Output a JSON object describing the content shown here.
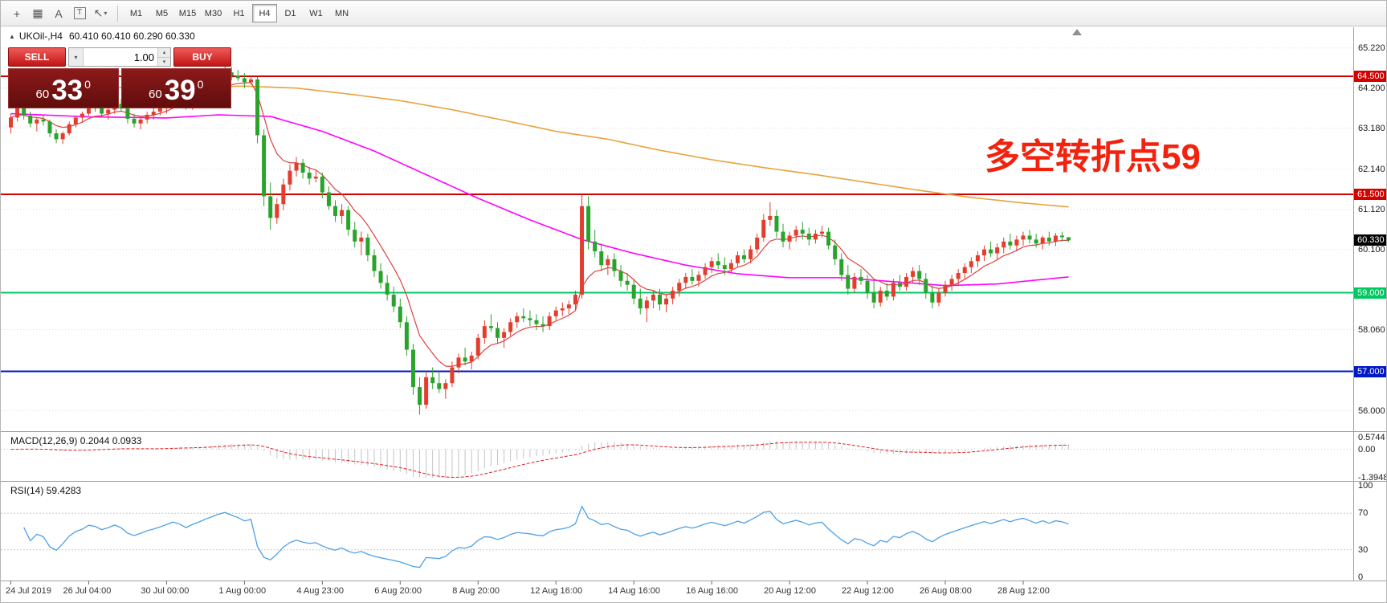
{
  "toolbar": {
    "icons": [
      {
        "name": "crosshair-icon",
        "glyph": "+"
      },
      {
        "name": "grid-icon",
        "glyph": "▦"
      },
      {
        "name": "text-label-icon",
        "glyph": "A"
      },
      {
        "name": "text-box-icon",
        "glyph": "T",
        "boxed": true
      },
      {
        "name": "indicators-dropdown-icon",
        "glyph": "↖",
        "dropdown": "▾"
      }
    ],
    "timeframes": [
      "M1",
      "M5",
      "M15",
      "M30",
      "H1",
      "H4",
      "D1",
      "W1",
      "MN"
    ],
    "active_timeframe": "H4"
  },
  "chart": {
    "symbol_title": "UKOil-,H4",
    "ohlc_text": "60.410 60.410 60.290 60.330",
    "collapse_icon": "▲",
    "annotation": {
      "text": "多空转折点59",
      "color": "#f2220f"
    },
    "trade_panel": {
      "sell_label": "SELL",
      "buy_label": "BUY",
      "volume": "1.00",
      "sell_price": {
        "small": "60",
        "big": "33",
        "sup": "0"
      },
      "buy_price": {
        "small": "60",
        "big": "39",
        "sup": "0"
      }
    },
    "colors": {
      "up": "#e23d2d",
      "down": "#2aa32c"
    },
    "hlines": [
      {
        "price": 64.5,
        "color": "#d40000",
        "label": "64.500",
        "width": 2
      },
      {
        "price": 61.5,
        "color": "#d40000",
        "label": "61.500",
        "width": 2
      },
      {
        "price": 59.0,
        "color": "#00c860",
        "label": "59.000",
        "width": 2
      },
      {
        "price": 57.0,
        "color": "#0018c8",
        "label": "57.000",
        "width": 2
      }
    ],
    "current_price": {
      "value": 60.33,
      "label": "60.330",
      "bg": "#000000"
    },
    "axis_labels": [
      {
        "p": 65.22,
        "t": "65.220"
      },
      {
        "p": 64.2,
        "t": "64.200"
      },
      {
        "p": 63.18,
        "t": "63.180"
      },
      {
        "p": 62.14,
        "t": "62.140"
      },
      {
        "p": 61.12,
        "t": "61.120"
      },
      {
        "p": 60.1,
        "t": "60.100"
      },
      {
        "p": 58.06,
        "t": "58.060"
      },
      {
        "p": 56.0,
        "t": "56.000"
      }
    ],
    "time_labels": [
      {
        "i": 0,
        "t": "24 Jul 2019"
      },
      {
        "i": 12,
        "t": "26 Jul 04:00"
      },
      {
        "i": 24,
        "t": "30 Jul 00:00"
      },
      {
        "i": 36,
        "t": "1 Aug 00:00"
      },
      {
        "i": 48,
        "t": "4 Aug 23:00"
      },
      {
        "i": 60,
        "t": "6 Aug 20:00"
      },
      {
        "i": 72,
        "t": "8 Aug 20:00"
      },
      {
        "i": 84,
        "t": "12 Aug 16:00"
      },
      {
        "i": 96,
        "t": "14 Aug 16:00"
      },
      {
        "i": 108,
        "t": "16 Aug 16:00"
      },
      {
        "i": 120,
        "t": "20 Aug 12:00"
      },
      {
        "i": 132,
        "t": "22 Aug 12:00"
      },
      {
        "i": 144,
        "t": "26 Aug 08:00"
      },
      {
        "i": 156,
        "t": "28 Aug 12:00"
      }
    ],
    "ma": {
      "fast": {
        "period": 8,
        "color": "#e04040"
      },
      "mid": {
        "color": "#ff00ff",
        "points": [
          [
            0,
            63.55
          ],
          [
            12,
            63.47
          ],
          [
            24,
            63.44
          ],
          [
            32,
            63.52
          ],
          [
            40,
            63.48
          ],
          [
            48,
            63.1
          ],
          [
            56,
            62.6
          ],
          [
            64,
            62.0
          ],
          [
            72,
            61.4
          ],
          [
            80,
            60.85
          ],
          [
            88,
            60.35
          ],
          [
            96,
            60.0
          ],
          [
            104,
            59.7
          ],
          [
            112,
            59.48
          ],
          [
            120,
            59.38
          ],
          [
            128,
            59.38
          ],
          [
            136,
            59.28
          ],
          [
            144,
            59.18
          ],
          [
            152,
            59.22
          ],
          [
            158,
            59.32
          ],
          [
            163,
            59.4
          ]
        ]
      },
      "slow": {
        "color": "#e8a33d",
        "points": [
          [
            0,
            64.2
          ],
          [
            12,
            64.22
          ],
          [
            24,
            64.22
          ],
          [
            36,
            64.25
          ],
          [
            44,
            64.2
          ],
          [
            52,
            64.05
          ],
          [
            60,
            63.88
          ],
          [
            68,
            63.65
          ],
          [
            76,
            63.38
          ],
          [
            84,
            63.1
          ],
          [
            92,
            62.9
          ],
          [
            100,
            62.62
          ],
          [
            108,
            62.38
          ],
          [
            116,
            62.18
          ],
          [
            124,
            62.0
          ],
          [
            132,
            61.8
          ],
          [
            140,
            61.6
          ],
          [
            148,
            61.42
          ],
          [
            156,
            61.28
          ],
          [
            163,
            61.18
          ]
        ]
      }
    },
    "candles": [
      [
        63.2,
        63.55,
        63.05,
        63.45
      ],
      [
        63.45,
        63.9,
        63.35,
        63.75
      ],
      [
        63.75,
        63.8,
        63.4,
        63.5
      ],
      [
        63.5,
        63.6,
        63.2,
        63.3
      ],
      [
        63.3,
        63.45,
        63.1,
        63.4
      ],
      [
        63.4,
        63.5,
        63.25,
        63.35
      ],
      [
        63.35,
        63.4,
        62.95,
        63.05
      ],
      [
        63.05,
        63.15,
        62.8,
        62.9
      ],
      [
        62.9,
        63.1,
        62.78,
        63.05
      ],
      [
        63.05,
        63.35,
        63.0,
        63.28
      ],
      [
        63.28,
        63.5,
        63.2,
        63.45
      ],
      [
        63.45,
        63.6,
        63.35,
        63.55
      ],
      [
        63.55,
        63.85,
        63.5,
        63.75
      ],
      [
        63.75,
        63.95,
        63.6,
        63.7
      ],
      [
        63.7,
        63.8,
        63.45,
        63.55
      ],
      [
        63.55,
        63.7,
        63.4,
        63.65
      ],
      [
        63.65,
        63.9,
        63.55,
        63.8
      ],
      [
        63.8,
        63.92,
        63.6,
        63.68
      ],
      [
        63.68,
        63.75,
        63.3,
        63.42
      ],
      [
        63.42,
        63.55,
        63.2,
        63.3
      ],
      [
        63.3,
        63.48,
        63.15,
        63.4
      ],
      [
        63.4,
        63.6,
        63.3,
        63.52
      ],
      [
        63.52,
        63.7,
        63.4,
        63.6
      ],
      [
        63.6,
        63.78,
        63.5,
        63.7
      ],
      [
        63.7,
        63.9,
        63.55,
        63.82
      ],
      [
        63.82,
        64.05,
        63.7,
        63.95
      ],
      [
        63.95,
        64.15,
        63.8,
        63.88
      ],
      [
        63.88,
        64.0,
        63.65,
        63.75
      ],
      [
        63.75,
        63.95,
        63.65,
        63.9
      ],
      [
        63.9,
        64.1,
        63.8,
        64.02
      ],
      [
        64.02,
        64.25,
        63.9,
        64.18
      ],
      [
        64.18,
        64.4,
        64.05,
        64.32
      ],
      [
        64.32,
        64.55,
        64.2,
        64.48
      ],
      [
        64.48,
        64.82,
        64.35,
        64.6
      ],
      [
        64.6,
        64.75,
        64.4,
        64.52
      ],
      [
        64.52,
        64.66,
        64.38,
        64.45
      ],
      [
        64.45,
        64.58,
        64.2,
        64.35
      ],
      [
        64.35,
        64.5,
        64.28,
        64.42
      ],
      [
        64.42,
        64.48,
        62.8,
        63.0
      ],
      [
        63.0,
        63.15,
        61.2,
        61.45
      ],
      [
        61.45,
        61.8,
        60.6,
        60.9
      ],
      [
        60.9,
        61.4,
        60.75,
        61.25
      ],
      [
        61.25,
        61.9,
        61.1,
        61.75
      ],
      [
        61.75,
        62.25,
        61.6,
        62.1
      ],
      [
        62.1,
        62.45,
        61.95,
        62.3
      ],
      [
        62.3,
        62.4,
        61.9,
        62.05
      ],
      [
        62.05,
        62.2,
        61.75,
        61.9
      ],
      [
        61.9,
        62.1,
        61.8,
        61.95
      ],
      [
        61.95,
        62.05,
        61.4,
        61.55
      ],
      [
        61.55,
        61.7,
        61.1,
        61.2
      ],
      [
        61.2,
        61.35,
        60.8,
        60.95
      ],
      [
        60.95,
        61.25,
        60.75,
        61.1
      ],
      [
        61.1,
        61.2,
        60.45,
        60.6
      ],
      [
        60.6,
        60.8,
        60.15,
        60.3
      ],
      [
        60.3,
        60.55,
        59.95,
        60.4
      ],
      [
        60.4,
        60.5,
        59.8,
        59.95
      ],
      [
        59.95,
        60.1,
        59.4,
        59.55
      ],
      [
        59.55,
        59.75,
        59.1,
        59.25
      ],
      [
        59.25,
        59.45,
        58.8,
        58.95
      ],
      [
        58.95,
        59.15,
        58.5,
        58.65
      ],
      [
        58.65,
        58.85,
        58.1,
        58.25
      ],
      [
        58.25,
        58.4,
        57.4,
        57.55
      ],
      [
        57.55,
        57.7,
        56.4,
        56.6
      ],
      [
        56.6,
        56.85,
        55.9,
        56.15
      ],
      [
        56.15,
        57.0,
        56.05,
        56.85
      ],
      [
        56.85,
        57.1,
        56.55,
        56.7
      ],
      [
        56.7,
        57.0,
        56.45,
        56.55
      ],
      [
        56.55,
        56.8,
        56.3,
        56.7
      ],
      [
        56.7,
        57.25,
        56.6,
        57.1
      ],
      [
        57.1,
        57.45,
        56.95,
        57.35
      ],
      [
        57.35,
        57.6,
        57.15,
        57.25
      ],
      [
        57.25,
        57.5,
        57.05,
        57.4
      ],
      [
        57.4,
        57.95,
        57.3,
        57.85
      ],
      [
        57.85,
        58.3,
        57.7,
        58.15
      ],
      [
        58.15,
        58.45,
        58.0,
        58.1
      ],
      [
        58.1,
        58.25,
        57.7,
        57.85
      ],
      [
        57.85,
        58.1,
        57.6,
        58.0
      ],
      [
        58.0,
        58.35,
        57.9,
        58.25
      ],
      [
        58.25,
        58.5,
        58.1,
        58.4
      ],
      [
        58.4,
        58.6,
        58.25,
        58.35
      ],
      [
        58.35,
        58.55,
        58.15,
        58.3
      ],
      [
        58.3,
        58.45,
        58.05,
        58.2
      ],
      [
        58.2,
        58.4,
        58.0,
        58.15
      ],
      [
        58.15,
        58.5,
        58.05,
        58.4
      ],
      [
        58.4,
        58.65,
        58.3,
        58.55
      ],
      [
        58.55,
        58.75,
        58.4,
        58.6
      ],
      [
        58.6,
        58.8,
        58.45,
        58.7
      ],
      [
        58.7,
        59.05,
        58.55,
        58.95
      ],
      [
        58.95,
        61.5,
        58.85,
        61.2
      ],
      [
        61.2,
        61.45,
        60.1,
        60.3
      ],
      [
        60.3,
        60.6,
        59.9,
        60.05
      ],
      [
        60.05,
        60.25,
        59.55,
        59.7
      ],
      [
        59.7,
        59.95,
        59.45,
        59.85
      ],
      [
        59.85,
        60.0,
        59.4,
        59.55
      ],
      [
        59.55,
        59.7,
        59.15,
        59.3
      ],
      [
        59.3,
        59.5,
        59.05,
        59.2
      ],
      [
        59.2,
        59.35,
        58.7,
        58.85
      ],
      [
        58.85,
        59.1,
        58.45,
        58.6
      ],
      [
        58.6,
        58.9,
        58.25,
        58.8
      ],
      [
        58.8,
        59.05,
        58.6,
        58.95
      ],
      [
        58.95,
        59.1,
        58.55,
        58.7
      ],
      [
        58.7,
        58.95,
        58.5,
        58.85
      ],
      [
        58.85,
        59.15,
        58.7,
        59.05
      ],
      [
        59.05,
        59.35,
        58.9,
        59.25
      ],
      [
        59.25,
        59.5,
        59.1,
        59.4
      ],
      [
        59.4,
        59.6,
        59.2,
        59.3
      ],
      [
        59.3,
        59.55,
        59.15,
        59.45
      ],
      [
        59.45,
        59.75,
        59.35,
        59.65
      ],
      [
        59.65,
        59.9,
        59.5,
        59.8
      ],
      [
        59.8,
        60.0,
        59.6,
        59.7
      ],
      [
        59.7,
        59.9,
        59.45,
        59.6
      ],
      [
        59.6,
        59.85,
        59.5,
        59.75
      ],
      [
        59.75,
        60.05,
        59.65,
        59.95
      ],
      [
        59.95,
        60.1,
        59.75,
        59.85
      ],
      [
        59.85,
        60.2,
        59.75,
        60.1
      ],
      [
        60.1,
        60.5,
        60.0,
        60.4
      ],
      [
        60.4,
        61.0,
        60.3,
        60.85
      ],
      [
        60.85,
        61.3,
        60.7,
        60.95
      ],
      [
        60.95,
        61.1,
        60.4,
        60.55
      ],
      [
        60.55,
        60.75,
        60.15,
        60.3
      ],
      [
        60.3,
        60.55,
        60.1,
        60.45
      ],
      [
        60.45,
        60.7,
        60.3,
        60.6
      ],
      [
        60.6,
        60.8,
        60.35,
        60.5
      ],
      [
        60.5,
        60.65,
        60.2,
        60.35
      ],
      [
        60.35,
        60.6,
        60.25,
        60.5
      ],
      [
        60.5,
        60.7,
        60.4,
        60.55
      ],
      [
        60.55,
        60.65,
        60.1,
        60.2
      ],
      [
        60.2,
        60.35,
        59.7,
        59.85
      ],
      [
        59.85,
        60.0,
        59.3,
        59.45
      ],
      [
        59.45,
        59.7,
        58.95,
        59.1
      ],
      [
        59.1,
        59.5,
        59.0,
        59.4
      ],
      [
        59.4,
        59.6,
        59.2,
        59.3
      ],
      [
        59.3,
        59.45,
        58.85,
        59.0
      ],
      [
        59.0,
        59.3,
        58.6,
        58.75
      ],
      [
        58.75,
        59.15,
        58.65,
        59.05
      ],
      [
        59.05,
        59.25,
        58.8,
        58.9
      ],
      [
        58.9,
        59.35,
        58.8,
        59.25
      ],
      [
        59.25,
        59.45,
        59.05,
        59.15
      ],
      [
        59.15,
        59.5,
        59.05,
        59.4
      ],
      [
        59.4,
        59.65,
        59.25,
        59.55
      ],
      [
        59.55,
        59.7,
        59.2,
        59.35
      ],
      [
        59.35,
        59.5,
        58.85,
        59.0
      ],
      [
        59.0,
        59.2,
        58.6,
        58.75
      ],
      [
        58.75,
        59.1,
        58.65,
        59.0
      ],
      [
        59.0,
        59.3,
        58.9,
        59.2
      ],
      [
        59.2,
        59.45,
        59.05,
        59.35
      ],
      [
        59.35,
        59.6,
        59.2,
        59.5
      ],
      [
        59.5,
        59.75,
        59.35,
        59.65
      ],
      [
        59.65,
        59.9,
        59.5,
        59.8
      ],
      [
        59.8,
        60.05,
        59.65,
        59.95
      ],
      [
        59.95,
        60.2,
        59.8,
        60.1
      ],
      [
        60.1,
        60.3,
        59.9,
        60.0
      ],
      [
        60.0,
        60.25,
        59.85,
        60.15
      ],
      [
        60.15,
        60.4,
        60.0,
        60.3
      ],
      [
        60.3,
        60.5,
        60.1,
        60.2
      ],
      [
        60.2,
        60.45,
        60.05,
        60.35
      ],
      [
        60.35,
        60.55,
        60.2,
        60.45
      ],
      [
        60.45,
        60.6,
        60.25,
        60.35
      ],
      [
        60.35,
        60.5,
        60.15,
        60.25
      ],
      [
        60.25,
        60.45,
        60.1,
        60.4
      ],
      [
        60.4,
        60.55,
        60.2,
        60.3
      ],
      [
        60.3,
        60.52,
        60.18,
        60.45
      ],
      [
        60.45,
        60.55,
        60.3,
        60.41
      ],
      [
        60.41,
        60.41,
        60.29,
        60.33
      ]
    ]
  },
  "macd": {
    "title": "MACD(12,26,9) 0.2044 0.0933",
    "params": {
      "fast": 12,
      "slow": 26,
      "signal": 9
    },
    "axis": [
      {
        "v": 0.5744,
        "t": "0.5744"
      },
      {
        "v": 0,
        "t": "0.00"
      },
      {
        "v": -1.3948,
        "t": "-1.3948"
      }
    ],
    "range": [
      0.5744,
      -1.3948
    ],
    "colors": {
      "hist": "#c4c4c4",
      "signal": "#e02020"
    }
  },
  "rsi": {
    "title": "RSI(14) 59.4283",
    "period": 14,
    "color": "#4da1e8",
    "levels": [
      70,
      30
    ],
    "axis": [
      {
        "v": 100,
        "t": "100"
      },
      {
        "v": 70,
        "t": "70"
      },
      {
        "v": 30,
        "t": "30"
      },
      {
        "v": 0,
        "t": "0"
      }
    ]
  }
}
